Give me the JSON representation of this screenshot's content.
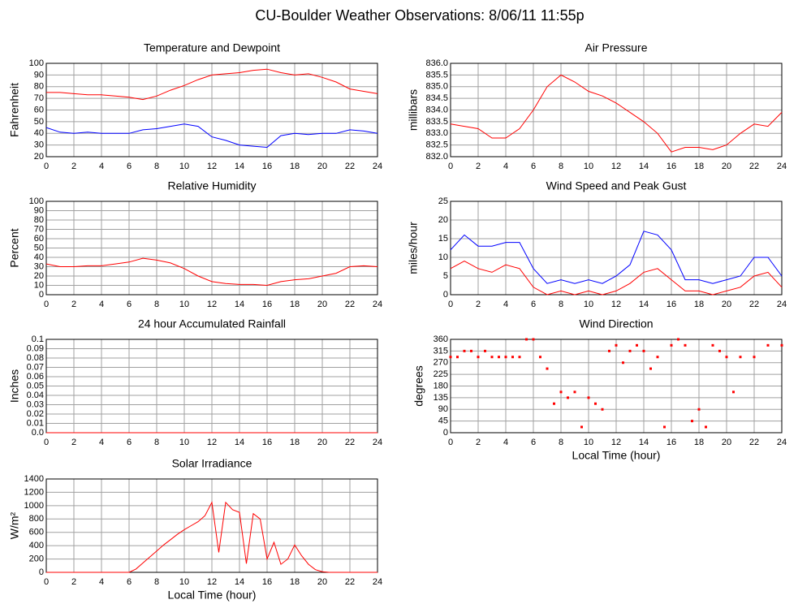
{
  "title": "CU-Boulder Weather Observations: 8/06/11 11:55p",
  "chart_data": [
    {
      "type": "line",
      "title": "Temperature and Dewpoint",
      "ylabel": "Fahrenheit",
      "x": [
        0,
        1,
        2,
        3,
        4,
        5,
        6,
        7,
        8,
        9,
        10,
        11,
        12,
        13,
        14,
        15,
        16,
        17,
        18,
        19,
        20,
        21,
        22,
        23,
        24
      ],
      "series": [
        {
          "color": "#ff0000",
          "values": [
            75,
            75,
            74,
            73,
            73,
            72,
            71,
            69,
            72,
            77,
            81,
            86,
            90,
            91,
            92,
            94,
            95,
            92,
            90,
            91,
            88,
            84,
            78,
            76,
            74
          ]
        },
        {
          "color": "#0000ff",
          "values": [
            45,
            41,
            40,
            41,
            40,
            40,
            40,
            43,
            44,
            46,
            48,
            46,
            37,
            34,
            30,
            29,
            28,
            38,
            40,
            39,
            40,
            40,
            43,
            42,
            40
          ]
        }
      ],
      "xlim": [
        0,
        24
      ],
      "xticks": [
        0,
        2,
        4,
        6,
        8,
        10,
        12,
        14,
        16,
        18,
        20,
        22,
        24
      ],
      "ylim": [
        20,
        100
      ],
      "yticks": [
        20,
        30,
        40,
        50,
        60,
        70,
        80,
        90,
        100
      ],
      "grid": true
    },
    {
      "type": "line",
      "title": "Air Pressure",
      "ylabel": "millibars",
      "x": [
        0,
        1,
        2,
        3,
        4,
        5,
        6,
        7,
        8,
        9,
        10,
        11,
        12,
        13,
        14,
        15,
        16,
        17,
        18,
        19,
        20,
        21,
        22,
        23,
        24
      ],
      "series": [
        {
          "color": "#ff0000",
          "values": [
            833.4,
            833.3,
            833.2,
            832.8,
            832.8,
            833.2,
            834.0,
            835.0,
            835.5,
            835.2,
            834.8,
            834.6,
            834.3,
            833.9,
            833.5,
            833.0,
            832.2,
            832.4,
            832.4,
            832.3,
            832.5,
            833.0,
            833.4,
            833.3,
            833.9
          ]
        }
      ],
      "xlim": [
        0,
        24
      ],
      "xticks": [
        0,
        2,
        4,
        6,
        8,
        10,
        12,
        14,
        16,
        18,
        20,
        22,
        24
      ],
      "ylim": [
        832,
        836
      ],
      "yticks": [
        {
          "value": 832,
          "label": "832.0"
        },
        832.5,
        {
          "value": 833,
          "label": "833.0"
        },
        833.5,
        {
          "value": 834,
          "label": "834.0"
        },
        834.5,
        {
          "value": 835,
          "label": "835.0"
        },
        835.5,
        {
          "value": 836,
          "label": "836.0"
        }
      ],
      "grid": true
    },
    {
      "type": "line",
      "title": "Relative Humidity",
      "ylabel": "Percent",
      "x": [
        0,
        1,
        2,
        3,
        4,
        5,
        6,
        7,
        8,
        9,
        10,
        11,
        12,
        13,
        14,
        15,
        16,
        17,
        18,
        19,
        20,
        21,
        22,
        23,
        24
      ],
      "series": [
        {
          "color": "#ff0000",
          "values": [
            33,
            30,
            30,
            31,
            31,
            33,
            35,
            39,
            37,
            34,
            28,
            20,
            14,
            12,
            11,
            11,
            10,
            14,
            16,
            17,
            20,
            23,
            30,
            31,
            30
          ]
        }
      ],
      "xlim": [
        0,
        24
      ],
      "xticks": [
        0,
        2,
        4,
        6,
        8,
        10,
        12,
        14,
        16,
        18,
        20,
        22,
        24
      ],
      "ylim": [
        0,
        100
      ],
      "yticks": [
        0,
        10,
        20,
        30,
        40,
        50,
        60,
        70,
        80,
        90,
        100
      ],
      "grid": true
    },
    {
      "type": "line",
      "title": "Wind Speed and Peak Gust",
      "ylabel": "miles/hour",
      "x": [
        0,
        1,
        2,
        3,
        4,
        5,
        6,
        7,
        8,
        9,
        10,
        11,
        12,
        13,
        14,
        15,
        16,
        17,
        18,
        19,
        20,
        21,
        22,
        23,
        24
      ],
      "series": [
        {
          "color": "#0000ff",
          "values": [
            12,
            16,
            13,
            13,
            14,
            14,
            7,
            3,
            4,
            3,
            4,
            3,
            5,
            8,
            17,
            16,
            12,
            4,
            4,
            3,
            4,
            5,
            10,
            10,
            5
          ]
        },
        {
          "color": "#ff0000",
          "values": [
            7,
            9,
            7,
            6,
            8,
            7,
            2,
            0,
            1,
            0,
            1,
            0,
            1,
            3,
            6,
            7,
            4,
            1,
            1,
            0,
            1,
            2,
            5,
            6,
            2
          ]
        }
      ],
      "xlim": [
        0,
        24
      ],
      "xticks": [
        0,
        2,
        4,
        6,
        8,
        10,
        12,
        14,
        16,
        18,
        20,
        22,
        24
      ],
      "ylim": [
        0,
        25
      ],
      "yticks": [
        0,
        5,
        10,
        15,
        20,
        25
      ],
      "grid": true
    },
    {
      "type": "line",
      "title": "24 hour Accumulated Rainfall",
      "ylabel": "Inches",
      "x": [
        0,
        2,
        4,
        6,
        8,
        10,
        12,
        14,
        16,
        18,
        20,
        22,
        24
      ],
      "series": [
        {
          "color": "#ff0000",
          "values": [
            0,
            0,
            0,
            0,
            0,
            0,
            0,
            0,
            0,
            0,
            0,
            0,
            0
          ]
        }
      ],
      "xlim": [
        0,
        24
      ],
      "xticks": [
        0,
        2,
        4,
        6,
        8,
        10,
        12,
        14,
        16,
        18,
        20,
        22,
        24
      ],
      "ylim": [
        0,
        0.1
      ],
      "yticks": [
        {
          "value": 0,
          "label": "0.0"
        },
        0.01,
        0.02,
        0.03,
        0.04,
        0.05,
        0.06,
        0.07,
        0.08,
        0.09,
        0.1
      ],
      "grid": true
    },
    {
      "type": "scatter",
      "title": "Wind Direction",
      "ylabel": "degrees",
      "xlabel": "Local Time (hour)",
      "x": [
        0,
        0.5,
        1,
        1.5,
        2,
        2.5,
        3,
        3.5,
        4,
        4.5,
        5,
        5.5,
        6,
        6.5,
        7,
        7.5,
        8,
        8.5,
        9,
        9.5,
        10,
        10.5,
        11,
        11.5,
        12,
        12.5,
        13,
        13.5,
        14,
        14.5,
        15,
        15.5,
        16,
        16.5,
        17,
        17.5,
        18,
        18.5,
        19,
        19.5,
        20,
        20.5,
        21,
        22,
        23,
        24
      ],
      "series": [
        {
          "color": "#ff0000",
          "values": [
            292,
            292,
            315,
            315,
            292,
            315,
            292,
            292,
            292,
            292,
            292,
            360,
            360,
            292,
            247,
            112,
            157,
            135,
            157,
            22,
            135,
            112,
            90,
            315,
            337,
            270,
            315,
            337,
            315,
            247,
            292,
            22,
            337,
            360,
            337,
            45,
            90,
            22,
            337,
            315,
            292,
            157,
            292,
            292,
            337,
            337
          ]
        }
      ],
      "xlim": [
        0,
        24
      ],
      "xticks": [
        0,
        2,
        4,
        6,
        8,
        10,
        12,
        14,
        16,
        18,
        20,
        22,
        24
      ],
      "ylim": [
        0,
        360
      ],
      "yticks": [
        0,
        45,
        90,
        135,
        180,
        225,
        270,
        315,
        360
      ],
      "grid": true
    },
    {
      "type": "line",
      "title": "Solar Irradiance",
      "ylabel": "W/m²",
      "xlabel": "Local Time (hour)",
      "x": [
        0,
        1,
        2,
        3,
        4,
        5,
        6,
        6.5,
        7,
        7.5,
        8,
        8.5,
        9,
        9.5,
        10,
        10.5,
        11,
        11.5,
        12,
        12.5,
        13,
        13.5,
        14,
        14.5,
        15,
        15.5,
        16,
        16.5,
        17,
        17.5,
        18,
        18.5,
        19,
        19.5,
        20,
        20.5,
        21,
        22,
        23,
        24
      ],
      "series": [
        {
          "color": "#ff0000",
          "values": [
            0,
            0,
            0,
            0,
            0,
            0,
            0,
            50,
            140,
            230,
            320,
            410,
            490,
            570,
            640,
            700,
            760,
            850,
            1050,
            300,
            1050,
            940,
            900,
            130,
            880,
            800,
            200,
            450,
            120,
            200,
            410,
            250,
            120,
            40,
            10,
            0,
            0,
            0,
            0,
            0
          ]
        }
      ],
      "xlim": [
        0,
        24
      ],
      "xticks": [
        0,
        2,
        4,
        6,
        8,
        10,
        12,
        14,
        16,
        18,
        20,
        22,
        24
      ],
      "ylim": [
        0,
        1400
      ],
      "yticks": [
        0,
        200,
        400,
        600,
        800,
        1000,
        1200,
        1400
      ],
      "grid": true
    }
  ]
}
